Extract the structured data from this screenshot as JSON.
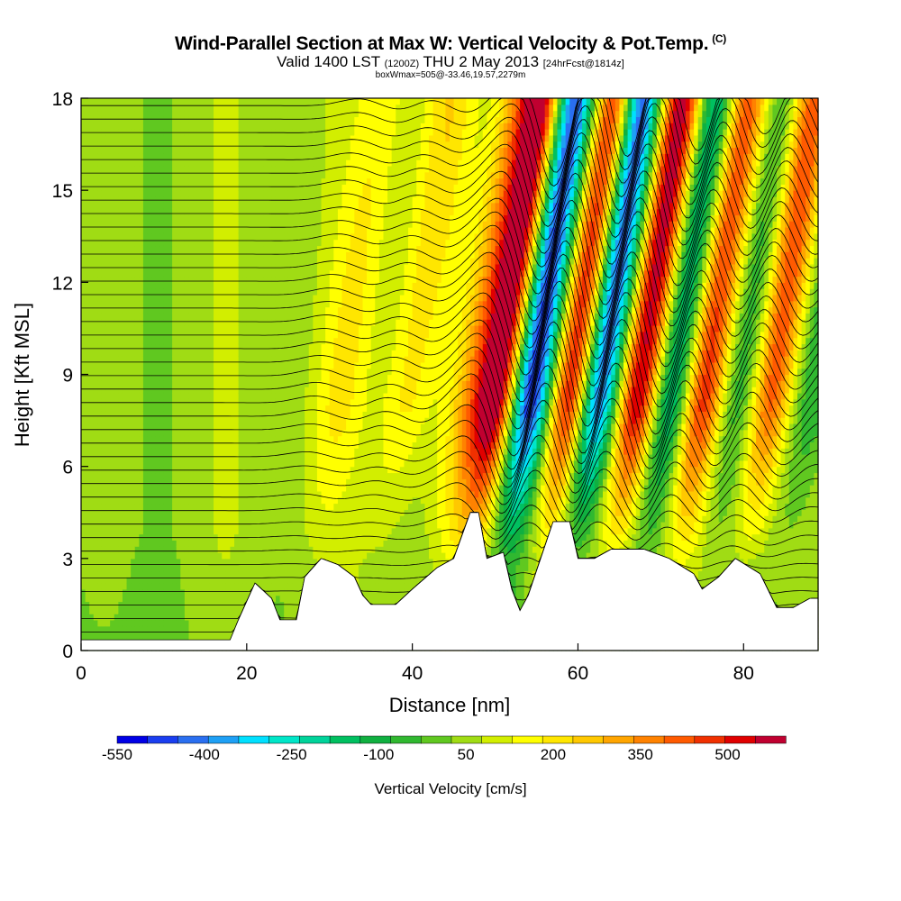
{
  "header": {
    "title": "Wind-Parallel Section at Max W: Vertical Velocity & Pot.Temp.",
    "copyright": "(C)",
    "valid_prefix": "Valid 1400 LST",
    "valid_utc": "(1200Z)",
    "valid_date": "THU 2 May 2013",
    "forecast": "[24hrFcst@1814z]",
    "subtitle": "boxWmax=505@-33.46,19.57,2279m"
  },
  "chart_data": {
    "type": "heatmap",
    "xlabel": "Distance [nm]",
    "ylabel": "Height [Kft MSL]",
    "xlim": [
      0,
      89
    ],
    "ylim": [
      0,
      18
    ],
    "xticks": [
      0,
      20,
      40,
      60,
      80
    ],
    "yticks": [
      0,
      3,
      6,
      9,
      12,
      15,
      18
    ],
    "colorbar": {
      "title": "Vertical Velocity [cm/s]",
      "min": -550,
      "max": 600,
      "step": 50,
      "tick_labels": [
        "-550",
        "-400",
        "-250",
        "-100",
        "50",
        "200",
        "350",
        "500"
      ],
      "tick_values": [
        -550,
        -400,
        -250,
        -100,
        50,
        200,
        350,
        500
      ],
      "colors": [
        "#0000e6",
        "#1a3ef0",
        "#2a6ff0",
        "#1ea0f5",
        "#00e0ff",
        "#00e6c8",
        "#00d39a",
        "#00c060",
        "#10b040",
        "#30b830",
        "#60c820",
        "#a0dc14",
        "#d2ee00",
        "#ffff00",
        "#ffe600",
        "#ffc800",
        "#ffa500",
        "#ff8200",
        "#ff5a00",
        "#f03000",
        "#e00000",
        "#c00030"
      ]
    },
    "waves": [
      {
        "x_base": 30,
        "w": 120,
        "halfwidth": 3.4,
        "tilt": 0.55
      },
      {
        "x_base": 38,
        "w": 150,
        "halfwidth": 3.2,
        "tilt": 0.55
      },
      {
        "x_base": 46,
        "w": 200,
        "halfwidth": 2.8,
        "tilt": 0.55
      },
      {
        "x_base": 49,
        "w": 560,
        "halfwidth": 2.6,
        "tilt": 0.55
      },
      {
        "x_base": 53,
        "w": -560,
        "halfwidth": 2.6,
        "tilt": 0.55
      },
      {
        "x_base": 58,
        "w": 500,
        "halfwidth": 2.5,
        "tilt": 0.55
      },
      {
        "x_base": 61,
        "w": -540,
        "halfwidth": 2.6,
        "tilt": 0.55
      },
      {
        "x_base": 66,
        "w": 520,
        "halfwidth": 2.5,
        "tilt": 0.55
      },
      {
        "x_base": 70,
        "w": -300,
        "halfwidth": 2.4,
        "tilt": 0.55
      },
      {
        "x_base": 74,
        "w": 400,
        "halfwidth": 2.5,
        "tilt": 0.55
      },
      {
        "x_base": 78,
        "w": -120,
        "halfwidth": 2.5,
        "tilt": 0.55
      },
      {
        "x_base": 82,
        "w": 350,
        "halfwidth": 2.4,
        "tilt": 0.55
      },
      {
        "x_base": 87,
        "w": -150,
        "halfwidth": 2.4,
        "tilt": 0.55
      }
    ],
    "terrain_profile": [
      [
        0,
        0.35
      ],
      [
        18,
        0.35
      ],
      [
        19,
        1.0
      ],
      [
        21,
        2.2
      ],
      [
        23,
        1.7
      ],
      [
        24,
        1.0
      ],
      [
        26,
        1.0
      ],
      [
        27,
        2.4
      ],
      [
        29,
        3.0
      ],
      [
        31,
        2.8
      ],
      [
        33,
        2.4
      ],
      [
        34,
        1.8
      ],
      [
        35,
        1.5
      ],
      [
        38,
        1.5
      ],
      [
        40,
        2.0
      ],
      [
        43,
        2.7
      ],
      [
        45,
        3.0
      ],
      [
        47,
        4.5
      ],
      [
        48,
        4.5
      ],
      [
        49,
        3.0
      ],
      [
        51,
        3.2
      ],
      [
        52,
        2.0
      ],
      [
        53,
        1.3
      ],
      [
        54,
        1.8
      ],
      [
        56,
        3.4
      ],
      [
        57,
        4.2
      ],
      [
        59,
        4.2
      ],
      [
        60,
        3.0
      ],
      [
        62,
        3.0
      ],
      [
        64,
        3.3
      ],
      [
        68,
        3.3
      ],
      [
        71,
        3.0
      ],
      [
        74,
        2.5
      ],
      [
        75,
        2.0
      ],
      [
        77,
        2.4
      ],
      [
        79,
        3.0
      ],
      [
        82,
        2.5
      ],
      [
        84,
        1.4
      ],
      [
        86,
        1.4
      ],
      [
        88,
        1.7
      ],
      [
        89,
        1.7
      ]
    ],
    "theta_contour_count": 40
  }
}
